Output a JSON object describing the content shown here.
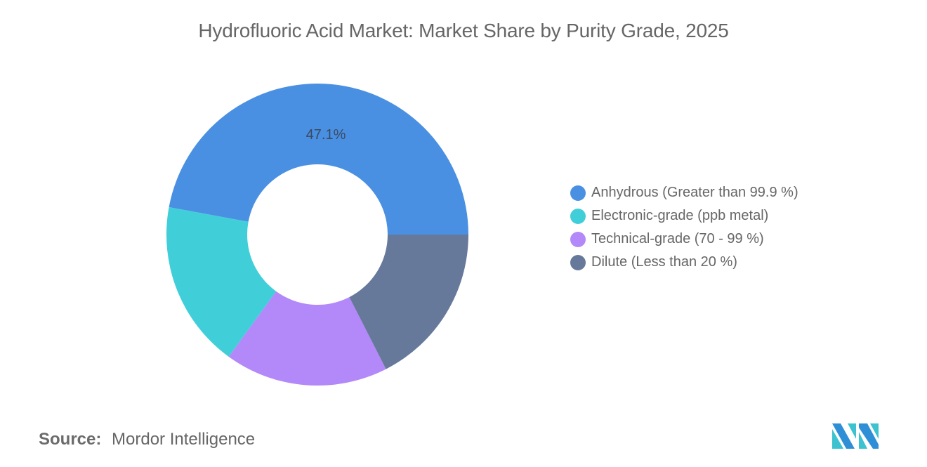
{
  "title": "Hydrofluoric Acid Market: Market Share by Purity Grade, 2025",
  "source": {
    "label": "Source:",
    "value": "Mordor Intelligence"
  },
  "logo": {
    "icon": "mordor-intelligence-logo-icon",
    "colors": [
      "#2f8fd6",
      "#3cc3cf"
    ]
  },
  "colors": {
    "anhydrous": "#4a90e2",
    "electronic": "#40cfd9",
    "technical": "#b388f9",
    "dilute": "#66799b"
  },
  "legend": [
    {
      "label": "Anhydrous (Greater than 99.9 %)",
      "color": "#4a90e2"
    },
    {
      "label": "Electronic-grade (ppb metal)",
      "color": "#40cfd9"
    },
    {
      "label": "Technical-grade (70 - 99 %)",
      "color": "#b388f9"
    },
    {
      "label": "Dilute (Less than 20 %)",
      "color": "#66799b"
    }
  ],
  "chart_data": {
    "type": "pie",
    "subtype": "donut",
    "title": "Hydrofluoric Acid Market: Market Share by Purity Grade, 2025",
    "categories": [
      "Anhydrous (Greater than 99.9 %)",
      "Electronic-grade (ppb metal)",
      "Technical-grade (70 - 99 %)",
      "Dilute (Less than 20 %)"
    ],
    "values": [
      47.1,
      17.9,
      17.5,
      17.5
    ],
    "unit": "%",
    "data_labels": [
      {
        "category": "Anhydrous (Greater than 99.9 %)",
        "text": "47.1%"
      }
    ],
    "colors": [
      "#4a90e2",
      "#40cfd9",
      "#b388f9",
      "#66799b"
    ],
    "start_angle": "3 o'clock",
    "direction": "counterclockwise",
    "legend_position": "right",
    "source": "Mordor Intelligence"
  }
}
